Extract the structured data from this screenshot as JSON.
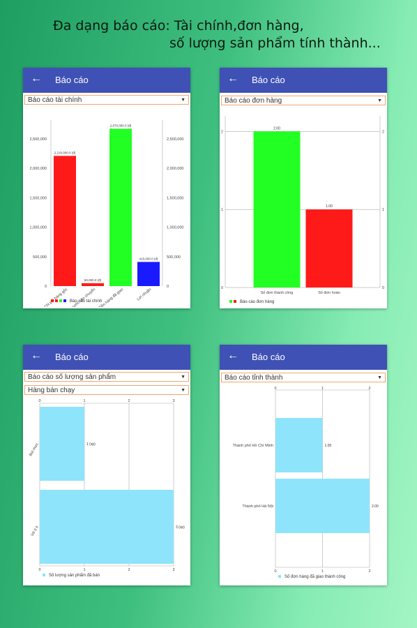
{
  "headline": {
    "line1": "Đa dạng báo cáo: Tài chính,đơn hàng,",
    "line2": "số lượng sản phẩm tính thành..."
  },
  "screens": [
    {
      "app_title": "Báo cáo",
      "dropdowns": [
        "Báo cáo tài chính"
      ]
    },
    {
      "app_title": "Báo cáo",
      "dropdowns": [
        "Báo cáo đơn hàng"
      ]
    },
    {
      "app_title": "Báo cáo",
      "dropdowns": [
        "Báo cáo số lượng sản phẩm",
        "Hàng bán chạy"
      ]
    },
    {
      "app_title": "Báo cáo",
      "dropdowns": [
        "Báo cáo tỉnh thành"
      ]
    }
  ],
  "colors": {
    "appbar": "#3f51b5",
    "red": "#ff1a1a",
    "green": "#22ff22",
    "blue": "#1a1aff",
    "light_blue": "#8ee4fa"
  },
  "chart_data": [
    {
      "type": "bar",
      "categories": [
        "Chi phí hàng gốc",
        "Chi phí cước vận chuyển",
        "Tiền hàng đã giao",
        "Lợi nhuận"
      ],
      "values": [
        2210000,
        50000,
        2670000,
        410000
      ],
      "value_labels": [
        "2,210,000.0 (đ)",
        "50,000.0 (đ)",
        "2,670,000.0 (đ)",
        "410,000.0 (đ)"
      ],
      "colors": [
        "#ff1a1a",
        "#ff1a1a",
        "#22ff22",
        "#1a1aff"
      ],
      "yticks": [
        "0",
        "500,000",
        "1,000,000",
        "1,500,000",
        "2,000,000",
        "2,500,000"
      ],
      "ylim": [
        0,
        2700000
      ],
      "legend": "Báo cáo tài chính",
      "legend_colors": [
        "#ff1a1a",
        "#ff1a1a",
        "#22ff22",
        "#1a1aff"
      ],
      "grid": true
    },
    {
      "type": "bar",
      "categories": [
        "Số đơn thành công",
        "Số đơn hoàn"
      ],
      "values": [
        2,
        1
      ],
      "value_labels": [
        "2.00",
        "1.00"
      ],
      "colors": [
        "#22ff22",
        "#ff1a1a"
      ],
      "yticks": [
        "0",
        "1",
        "2"
      ],
      "ylim": [
        0,
        2.2
      ],
      "legend": "Báo cáo đơn hàng",
      "legend_colors": [
        "#22ff22",
        "#ff1a1a"
      ],
      "grid": true
    },
    {
      "type": "bar",
      "orientation": "horizontal",
      "categories": [
        "Bút mực",
        "Vở ô li"
      ],
      "values": [
        1,
        3
      ],
      "value_labels": [
        "1 (sp)",
        "3 (sp)"
      ],
      "colors": [
        "#8ee4fa",
        "#8ee4fa"
      ],
      "xticks": [
        "0",
        "1",
        "2",
        "3"
      ],
      "xlim": [
        0,
        3
      ],
      "legend": "Số lượng sản phẩm đã bán",
      "legend_colors": [
        "#8ee4fa"
      ],
      "grid": true
    },
    {
      "type": "bar",
      "orientation": "horizontal",
      "categories": [
        "Thành phố Hồ Chí Minh",
        "Thành phố Hà Nội"
      ],
      "values": [
        1,
        2
      ],
      "value_labels": [
        "1.00",
        "2.00"
      ],
      "colors": [
        "#8ee4fa",
        "#8ee4fa"
      ],
      "xticks": [
        "0",
        "1",
        "2"
      ],
      "xlim": [
        0,
        2
      ],
      "legend": "Số đơn hàng đã giao thành công",
      "legend_colors": [
        "#8ee4fa"
      ],
      "grid": true
    }
  ]
}
